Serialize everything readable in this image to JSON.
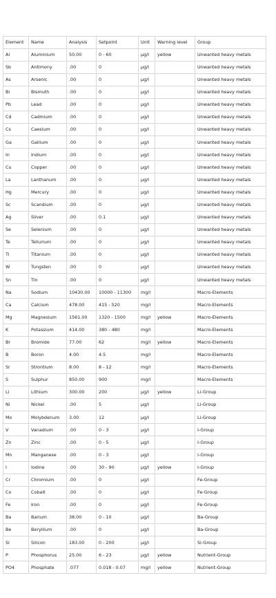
{
  "table": {
    "headers": [
      "Element",
      "Name",
      "Analysis",
      "Setpoint",
      "Unit",
      "Warning level",
      "Group"
    ],
    "rows": [
      [
        "Al",
        "Aluminium",
        "50.00",
        "0 - 60",
        "µg/l",
        "yellow",
        "Unwanted heavy metals"
      ],
      [
        "Sb",
        "Antimony",
        ".00",
        "0",
        "µg/l",
        "",
        "Unwanted heavy metals"
      ],
      [
        "As",
        "Arsenic",
        ".00",
        "0",
        "µg/l",
        "",
        "Unwanted heavy metals"
      ],
      [
        "Bi",
        "Bismuth",
        ".00",
        "0",
        "µg/l",
        "",
        "Unwanted heavy metals"
      ],
      [
        "Pb",
        "Lead",
        ".00",
        "0",
        "µg/l",
        "",
        "Unwanted heavy metals"
      ],
      [
        "Cd",
        "Cadmium",
        ".00",
        "0",
        "µg/l",
        "",
        "Unwanted heavy metals"
      ],
      [
        "Cs",
        "Caesium",
        ".00",
        "0",
        "µg/l",
        "",
        "Unwanted heavy metals"
      ],
      [
        "Ga",
        "Gallium",
        ".00",
        "0",
        "µg/l",
        "",
        "Unwanted heavy metals"
      ],
      [
        "In",
        "Indium",
        ".00",
        "0",
        "µg/l",
        "",
        "Unwanted heavy metals"
      ],
      [
        "Cu",
        "Copper",
        ".00",
        "0",
        "µg/l",
        "",
        "Unwanted heavy metals"
      ],
      [
        "La",
        "Lanthanum",
        ".00",
        "0",
        "µg/l",
        "",
        "Unwanted heavy metals"
      ],
      [
        "Hg",
        "Mercury",
        ".00",
        "0",
        "µg/l",
        "",
        "Unwanted heavy metals"
      ],
      [
        "Sc",
        "Scandium",
        ".00",
        "0",
        "µg/l",
        "",
        "Unwanted heavy metals"
      ],
      [
        "Ag",
        "Silver",
        ".00",
        "0.1",
        "µg/l",
        "",
        "Unwanted heavy metals"
      ],
      [
        "Se",
        "Selenium",
        ".00",
        "0",
        "µg/l",
        "",
        "Unwanted heavy metals"
      ],
      [
        "Te",
        "Tellurium",
        ".00",
        "0",
        "µg/l",
        "",
        "Unwanted heavy metals"
      ],
      [
        "Ti",
        "Titanium",
        ".00",
        "0",
        "µg/l",
        "",
        "Unwanted heavy metals"
      ],
      [
        "W",
        "Tungsten",
        ".00",
        "0",
        "µg/l",
        "",
        "Unwanted heavy metals"
      ],
      [
        "Sn",
        "Tin",
        ".00",
        "0",
        "µg/l",
        "",
        "Unwanted heavy metals"
      ],
      [
        "Na",
        "Sodium",
        "10430.00",
        "10000 - 11300",
        "mg/l",
        "",
        "Macro-Elements"
      ],
      [
        "Ca",
        "Calcium",
        "478.00",
        "415 - 520",
        "mg/l",
        "",
        "Macro-Elements"
      ],
      [
        "Mg",
        "Magnesium",
        "1561.00",
        "1320 - 1500",
        "mg/l",
        "yellow",
        "Macro-Elements"
      ],
      [
        "K",
        "Potassium",
        "414.00",
        "380 - 480",
        "mg/l",
        "",
        "Macro-Elements"
      ],
      [
        "Br",
        "Bromide",
        "77.00",
        "62",
        "mg/l",
        "yellow",
        "Macro-Elements"
      ],
      [
        "B",
        "Boron",
        "4.00",
        "4.5",
        "mg/l",
        "",
        "Macro-Elements"
      ],
      [
        "Sr",
        "Strontium",
        "8.00",
        "8 - 12",
        "mg/l",
        "",
        "Macro-Elements"
      ],
      [
        "S",
        "Sulphur",
        "850.00",
        "900",
        "mg/l",
        "",
        "Macro-Elements"
      ],
      [
        "Li",
        "Lithium",
        "300.00",
        "200",
        "µg/l",
        "yellow",
        "Li-Group"
      ],
      [
        "Ni",
        "Nickel",
        ".00",
        "5",
        "µg/l",
        "",
        "Li-Group"
      ],
      [
        "Mo",
        "Molybdenum",
        "3.00",
        "12",
        "µg/l",
        "",
        "Li-Group"
      ],
      [
        "V",
        "Vanadium",
        ".00",
        "0 - 3",
        "µg/l",
        "",
        "I-Group"
      ],
      [
        "Zn",
        "Zinc",
        ".00",
        "0 - 5",
        "µg/l",
        "",
        "I-Group"
      ],
      [
        "Mn",
        "Manganese",
        ".00",
        "0 - 3",
        "µg/l",
        "",
        "I-Group"
      ],
      [
        "I",
        "Iodine",
        ".00",
        "30 - 90",
        "µg/l",
        "yellow",
        "I-Group"
      ],
      [
        "Cr",
        "Chromium",
        ".00",
        "0",
        "µg/l",
        "",
        "Fe-Group"
      ],
      [
        "Co",
        "Cobalt",
        ".00",
        "0",
        "µg/l",
        "",
        "Fe-Group"
      ],
      [
        "Fe",
        "Iron",
        ".00",
        "0",
        "µg/l",
        "",
        "Fe-Group"
      ],
      [
        "Ba",
        "Barium",
        "38.00",
        "0 - 10",
        "µg/l",
        "",
        "Ba-Group"
      ],
      [
        "Be",
        "Beryllium",
        ".00",
        "0",
        "µg/l",
        "",
        "Ba-Group"
      ],
      [
        "Si",
        "Silicon",
        "183.00",
        "0 - 200",
        "µg/l",
        "",
        "Si-Group"
      ],
      [
        "P",
        "Phosphorus",
        "25.00",
        "6 - 23",
        "µg/l",
        "yellow",
        "Nutrient-Group"
      ],
      [
        "PO4",
        "Phosphate",
        ".077",
        "0.018 - 0.07",
        "mg/l",
        "yellow",
        "Nutrient-Group"
      ]
    ]
  }
}
